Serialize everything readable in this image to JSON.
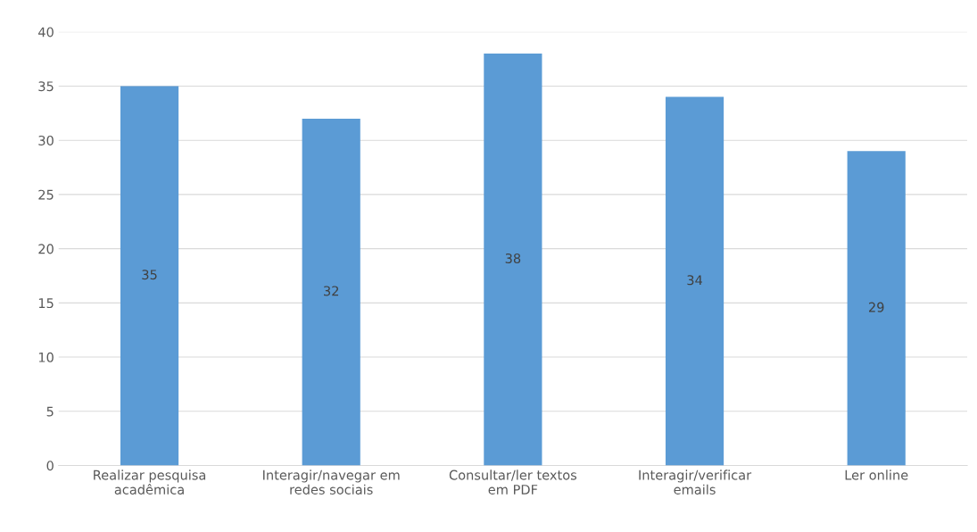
{
  "chart_data": {
    "type": "bar",
    "categories": [
      "Realizar pesquisa\nacadêmica",
      "Interagir/navegar em\nredes sociais",
      "Consultar/ler textos\nem PDF",
      "Interagir/verificar\nemails",
      "Ler online"
    ],
    "values": [
      35,
      32,
      38,
      34,
      29
    ],
    "color": "#5b9bd5",
    "ylim": [
      0,
      40
    ],
    "yticks": [
      0,
      5,
      10,
      15,
      20,
      25,
      30,
      35,
      40
    ],
    "grid": "y",
    "data_labels": true
  }
}
